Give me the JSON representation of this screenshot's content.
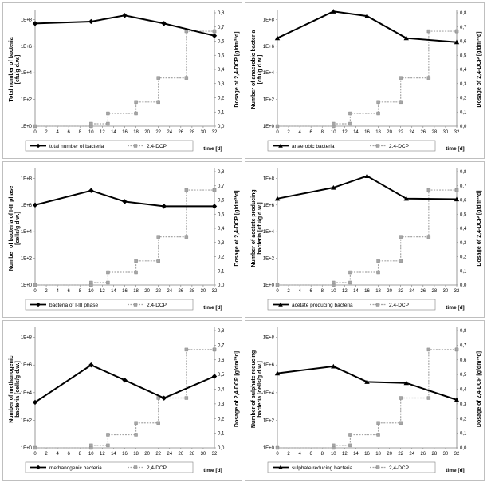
{
  "shared": {
    "x_ticks": [
      0,
      2,
      4,
      6,
      8,
      10,
      12,
      14,
      16,
      18,
      20,
      22,
      24,
      26,
      28,
      30,
      32
    ],
    "y_left_ticks": [
      "1E+0",
      "1E+2",
      "1E+4",
      "1E+6",
      "1E+8"
    ],
    "y_right_ticks": [
      "0,0",
      "0,1",
      "0,2",
      "0,3",
      "0,4",
      "0,5",
      "0,6",
      "0,7",
      "0,8"
    ],
    "x_axis_label": "time [d]",
    "y_right_label": "Dosage of  2,4-DCP [g/dm³*d]",
    "dcp_legend": "2,4-DCP",
    "colors": {
      "bacteria": "#000000",
      "dcp": "#a6a6a6"
    }
  },
  "chart_data": [
    {
      "type": "line",
      "ylabel": "Total number of bacteria\n[cfu/g d.w.]",
      "xlim": [
        0,
        32
      ],
      "ylim_log10": [
        0,
        8.5
      ],
      "y2lim": [
        0,
        0.8
      ],
      "series": [
        {
          "name": "total number of bacteria",
          "marker": "diamond",
          "x": [
            0,
            10,
            16,
            23,
            32
          ],
          "y": [
            50000000.0,
            70000000.0,
            200000000.0,
            50000000.0,
            6000000.0
          ]
        },
        {
          "name": "2,4-DCP",
          "marker": "square",
          "step": true,
          "x": [
            0,
            10,
            13,
            18,
            22,
            27,
            32
          ],
          "y2": [
            0.0,
            0.017,
            0.09,
            0.17,
            0.34,
            0.67,
            0.67
          ]
        }
      ]
    },
    {
      "type": "line",
      "ylabel": "Number of anaerobic bacteria\n[cfu/g d.w.]",
      "xlim": [
        0,
        32
      ],
      "ylim_log10": [
        0,
        8.5
      ],
      "y2lim": [
        0,
        0.8
      ],
      "series": [
        {
          "name": "anaerobic bacteria",
          "marker": "triangle",
          "x": [
            0,
            10,
            16,
            23,
            32
          ],
          "y": [
            4000000.0,
            400000000.0,
            180000000.0,
            4000000.0,
            2000000.0
          ]
        },
        {
          "name": "2,4-DCP",
          "marker": "square",
          "step": true,
          "x": [
            0,
            10,
            13,
            18,
            22,
            27,
            32
          ],
          "y2": [
            0.0,
            0.017,
            0.09,
            0.17,
            0.34,
            0.67,
            0.67
          ]
        }
      ]
    },
    {
      "type": "line",
      "ylabel": "Number of bacteria of I-III phase\n[cells/g d.w.]",
      "xlim": [
        0,
        32
      ],
      "ylim_log10": [
        0,
        8.5
      ],
      "y2lim": [
        0,
        0.8
      ],
      "series": [
        {
          "name": "bacteria of I-III phase",
          "marker": "diamond",
          "x": [
            0,
            10,
            16,
            23,
            32
          ],
          "y": [
            1000000.0,
            12000000.0,
            1800000.0,
            800000.0,
            800000.0
          ]
        },
        {
          "name": "2,4-DCP",
          "marker": "square",
          "step": true,
          "x": [
            0,
            10,
            13,
            18,
            22,
            27,
            32
          ],
          "y2": [
            0.0,
            0.017,
            0.09,
            0.17,
            0.34,
            0.67,
            0.67
          ]
        }
      ]
    },
    {
      "type": "line",
      "ylabel": "Number of acetate producing\nbacteria  [cfu/g d.w.]",
      "xlim": [
        0,
        32
      ],
      "ylim_log10": [
        0,
        8.5
      ],
      "y2lim": [
        0,
        0.8
      ],
      "series": [
        {
          "name": "acetate producing bacteria",
          "marker": "triangle",
          "x": [
            0,
            10,
            16,
            23,
            32
          ],
          "y": [
            3000000.0,
            20000000.0,
            150000000.0,
            3000000.0,
            2700000.0
          ]
        },
        {
          "name": "2,4-DCP",
          "marker": "square",
          "step": true,
          "x": [
            0,
            10,
            13,
            18,
            22,
            27,
            32
          ],
          "y2": [
            0.0,
            0.017,
            0.09,
            0.17,
            0.34,
            0.67,
            0.67
          ]
        }
      ]
    },
    {
      "type": "line",
      "ylabel": "Number of methanogenic\nbacteria [cells/g d.w.]",
      "xlim": [
        0,
        32
      ],
      "ylim_log10": [
        0,
        8.5
      ],
      "y2lim": [
        0,
        0.8
      ],
      "series": [
        {
          "name": "methanogenic bacteria",
          "marker": "diamond",
          "x": [
            0,
            10,
            16,
            23,
            32
          ],
          "y": [
            2000.0,
            1000000.0,
            80000.0,
            4000.0,
            150000.0
          ]
        },
        {
          "name": "2,4-DCP",
          "marker": "square",
          "step": true,
          "x": [
            0,
            10,
            13,
            18,
            22,
            27,
            32
          ],
          "y2": [
            0.0,
            0.017,
            0.09,
            0.17,
            0.34,
            0.67,
            0.67
          ]
        }
      ]
    },
    {
      "type": "line",
      "ylabel": "Number of sulphate reducing\nbacteria [cells/g d.w.]",
      "xlim": [
        0,
        32
      ],
      "ylim_log10": [
        0,
        8.5
      ],
      "y2lim": [
        0,
        0.8
      ],
      "series": [
        {
          "name": "sulphate reducing bacteria",
          "marker": "triangle",
          "x": [
            0,
            10,
            16,
            23,
            32
          ],
          "y": [
            250000.0,
            800000.0,
            60000.0,
            50000.0,
            3000.0
          ]
        },
        {
          "name": "2,4-DCP",
          "marker": "square",
          "step": true,
          "x": [
            0,
            10,
            13,
            18,
            22,
            27,
            32
          ],
          "y2": [
            0.0,
            0.017,
            0.09,
            0.17,
            0.34,
            0.67,
            0.67
          ]
        }
      ]
    }
  ]
}
